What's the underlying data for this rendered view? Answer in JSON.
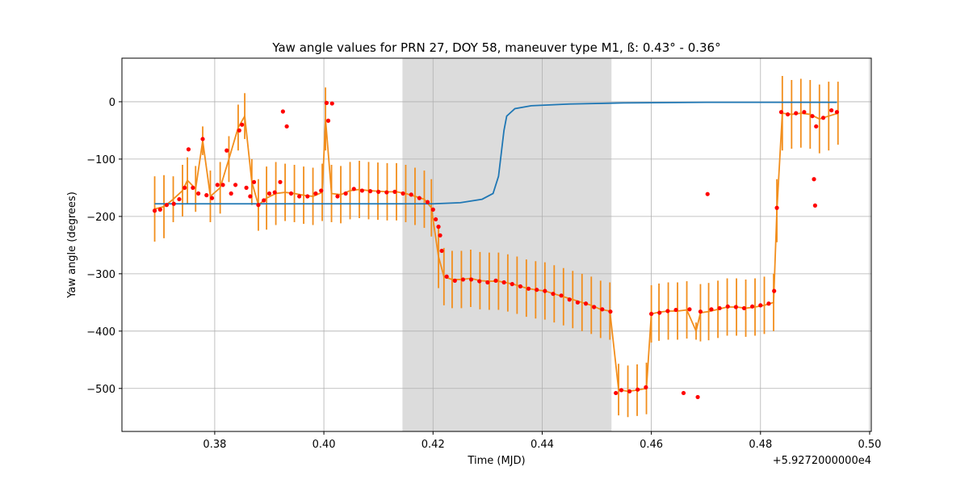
{
  "chart_data": {
    "type": "multi",
    "title": "Yaw angle values for PRN 27, DOY 58, maneuver type M1, ß: 0.43° - 0.36°",
    "x_label": "Time (MJD)",
    "y_label": "Yaw angle (degrees)",
    "x_offset_text": "+5.9272000000e4",
    "xlim": [
      0.363,
      0.5003
    ],
    "ylim": [
      -575,
      76
    ],
    "xticks": [
      0.38,
      {
        "value": 0.4,
        "label": "0.40"
      },
      0.42,
      0.44,
      0.46,
      0.48,
      {
        "value": 0.5,
        "label": "0.50"
      }
    ],
    "yticks": [
      {
        "value": -500,
        "label": "−500"
      },
      {
        "value": -400,
        "label": "−400"
      },
      {
        "value": -300,
        "label": "−300"
      },
      {
        "value": -200,
        "label": "−200"
      },
      {
        "value": -100,
        "label": "−100"
      },
      0
    ],
    "grid": true,
    "shaded_span": [
      0.4144,
      0.4527
    ],
    "shaded_color": "#dcdcdc",
    "series": [
      {
        "type": "errorbar",
        "color": "#f28e1c",
        "x": [
          0.369,
          0.3707,
          0.3724,
          0.3741,
          0.375,
          0.3765,
          0.3778,
          0.3792,
          0.381,
          0.3826,
          0.3843,
          0.3855,
          0.3868,
          0.388,
          0.3895,
          0.3912,
          0.3929,
          0.3946,
          0.3963,
          0.398,
          0.3997,
          0.4003,
          0.4014,
          0.4031,
          0.4048,
          0.4065,
          0.4082,
          0.4099,
          0.4116,
          0.4133,
          0.415,
          0.4167,
          0.4184,
          0.4197,
          0.421,
          0.422,
          0.4235,
          0.4252,
          0.4269,
          0.4286,
          0.4303,
          0.432,
          0.4337,
          0.4354,
          0.4371,
          0.4388,
          0.4405,
          0.4422,
          0.4439,
          0.4456,
          0.4473,
          0.449,
          0.4507,
          0.4524,
          0.454,
          0.4557,
          0.4574,
          0.4591,
          0.46,
          0.4614,
          0.4631,
          0.4648,
          0.4665,
          0.4682,
          0.469,
          0.4705,
          0.4722,
          0.4739,
          0.4756,
          0.4773,
          0.479,
          0.4807,
          0.4824,
          0.483,
          0.484,
          0.4857,
          0.4874,
          0.4891,
          0.4908,
          0.4925,
          0.4942
        ],
        "values": [
          -187,
          -183,
          -170,
          -155,
          -137,
          -152,
          -68,
          -165,
          -150,
          -100,
          -45,
          -25,
          -140,
          -180,
          -168,
          -160,
          -158,
          -160,
          -163,
          -165,
          -158,
          -30,
          -160,
          -162,
          -155,
          -153,
          -155,
          -156,
          -157,
          -157,
          -160,
          -165,
          -170,
          -185,
          -270,
          -305,
          -310,
          -310,
          -308,
          -312,
          -313,
          -313,
          -316,
          -320,
          -325,
          -328,
          -330,
          -335,
          -340,
          -345,
          -350,
          -355,
          -362,
          -365,
          -502,
          -505,
          -503,
          -500,
          -370,
          -367,
          -365,
          -365,
          -363,
          -400,
          -368,
          -366,
          -362,
          -358,
          -358,
          -360,
          -358,
          -355,
          -350,
          -190,
          -20,
          -22,
          -20,
          -22,
          -30,
          -25,
          -20
        ],
        "errors": [
          57,
          55,
          40,
          45,
          40,
          40,
          25,
          45,
          45,
          40,
          40,
          40,
          40,
          45,
          55,
          55,
          50,
          50,
          50,
          50,
          50,
          55,
          50,
          50,
          50,
          50,
          50,
          50,
          50,
          50,
          50,
          50,
          50,
          50,
          55,
          50,
          50,
          50,
          50,
          50,
          50,
          50,
          50,
          50,
          50,
          50,
          50,
          50,
          50,
          50,
          50,
          50,
          50,
          50,
          45,
          45,
          45,
          45,
          50,
          50,
          50,
          50,
          50,
          15,
          50,
          50,
          50,
          50,
          50,
          50,
          50,
          50,
          50,
          55,
          65,
          60,
          60,
          60,
          60,
          60,
          55
        ]
      },
      {
        "type": "line",
        "color": "#1f77b4",
        "x": [
          0.369,
          0.42,
          0.425,
          0.429,
          0.431,
          0.432,
          0.4325,
          0.433,
          0.4335,
          0.435,
          0.438,
          0.445,
          0.455,
          0.47,
          0.494
        ],
        "values": [
          -178,
          -178,
          -176,
          -170,
          -160,
          -130,
          -90,
          -50,
          -25,
          -12,
          -7,
          -4,
          -2,
          -1,
          -1
        ]
      },
      {
        "type": "scatter",
        "color": "red",
        "x": [
          0.369,
          0.37,
          0.3712,
          0.3725,
          0.3735,
          0.3745,
          0.3752,
          0.376,
          0.377,
          0.3778,
          0.3785,
          0.3795,
          0.3805,
          0.3815,
          0.3822,
          0.383,
          0.3838,
          0.3845,
          0.385,
          0.3858,
          0.3865,
          0.3872,
          0.388,
          0.389,
          0.39,
          0.391,
          0.392,
          0.3925,
          0.3932,
          0.394,
          0.3955,
          0.397,
          0.3985,
          0.3995,
          0.4005,
          0.4008,
          0.4015,
          0.4025,
          0.404,
          0.4055,
          0.407,
          0.4085,
          0.41,
          0.4115,
          0.413,
          0.4145,
          0.416,
          0.4175,
          0.419,
          0.42,
          0.4205,
          0.421,
          0.4213,
          0.4216,
          0.4225,
          0.424,
          0.4255,
          0.427,
          0.4285,
          0.43,
          0.4315,
          0.433,
          0.4345,
          0.436,
          0.4375,
          0.439,
          0.4405,
          0.442,
          0.4435,
          0.445,
          0.4465,
          0.448,
          0.4495,
          0.451,
          0.4525,
          0.4535,
          0.4545,
          0.456,
          0.4575,
          0.459,
          0.46,
          0.4615,
          0.463,
          0.4645,
          0.4659,
          0.467,
          0.4685,
          0.469,
          0.4703,
          0.471,
          0.4725,
          0.474,
          0.4755,
          0.477,
          0.4785,
          0.48,
          0.4815,
          0.4825,
          0.483,
          0.4838,
          0.485,
          0.4865,
          0.488,
          0.4895,
          0.4898,
          0.49,
          0.4902,
          0.4915,
          0.493,
          0.494
        ],
        "values": [
          -190,
          -188,
          -180,
          -178,
          -170,
          -150,
          -83,
          -150,
          -160,
          -65,
          -163,
          -168,
          -145,
          -145,
          -85,
          -160,
          -145,
          -50,
          -40,
          -150,
          -165,
          -140,
          -180,
          -172,
          -160,
          -158,
          -140,
          -17,
          -43,
          -160,
          -165,
          -165,
          -160,
          -155,
          -2,
          -33,
          -3,
          -165,
          -160,
          -152,
          -155,
          -156,
          -157,
          -158,
          -157,
          -160,
          -162,
          -168,
          -175,
          -188,
          -205,
          -218,
          -233,
          -260,
          -305,
          -312,
          -310,
          -310,
          -313,
          -315,
          -312,
          -315,
          -318,
          -322,
          -326,
          -328,
          -330,
          -335,
          -338,
          -345,
          -350,
          -352,
          -358,
          -362,
          -366,
          -508,
          -503,
          -505,
          -502,
          -498,
          -370,
          -368,
          -365,
          -363,
          -508,
          -362,
          -515,
          -366,
          -161,
          -362,
          -360,
          -357,
          -358,
          -360,
          -357,
          -355,
          -352,
          -330,
          -185,
          -18,
          -22,
          -20,
          -18,
          -25,
          -135,
          -181,
          -43,
          -28,
          -15,
          -18
        ]
      }
    ]
  }
}
